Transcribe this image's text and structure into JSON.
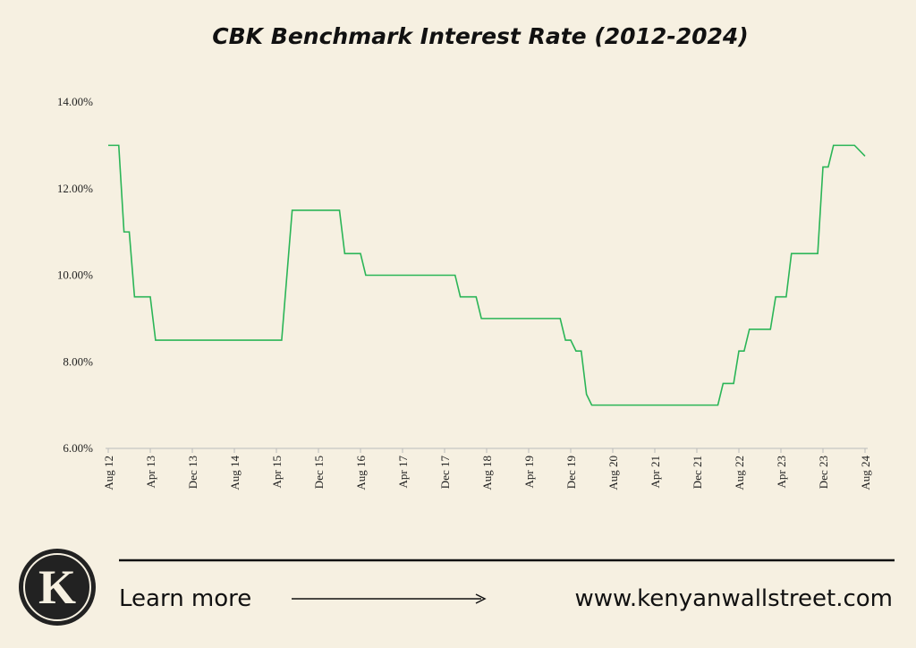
{
  "chart_data": {
    "type": "line",
    "title": "CBK Benchmark Interest Rate (2012-2024)",
    "x": [
      "2012-08",
      "2012-10",
      "2012-11",
      "2012-12",
      "2013-01",
      "2013-04",
      "2013-05",
      "2015-05",
      "2015-07",
      "2016-04",
      "2016-05",
      "2016-08",
      "2016-09",
      "2018-02",
      "2018-03",
      "2018-06",
      "2018-07",
      "2019-10",
      "2019-11",
      "2019-12",
      "2020-01",
      "2020-02",
      "2020-03",
      "2020-04",
      "2022-04",
      "2022-05",
      "2022-07",
      "2022-08",
      "2022-09",
      "2022-10",
      "2023-02",
      "2023-03",
      "2023-05",
      "2023-06",
      "2023-11",
      "2023-12",
      "2024-01",
      "2024-02",
      "2024-06",
      "2024-08"
    ],
    "values": [
      13,
      13,
      11,
      11,
      9.5,
      9.5,
      8.5,
      8.5,
      11.5,
      11.5,
      10.5,
      10.5,
      10,
      10,
      9.5,
      9.5,
      9,
      9,
      8.5,
      8.5,
      8.25,
      8.25,
      7.25,
      7,
      7,
      7.5,
      7.5,
      8.25,
      8.25,
      8.75,
      8.75,
      9.5,
      9.5,
      10.5,
      10.5,
      12.5,
      12.5,
      13,
      13,
      12.75
    ],
    "color": "#2bb557",
    "xlim": [
      "2012-08",
      "2024-08"
    ],
    "xticks": [
      {
        "value": "2012-08",
        "label": "Aug 12"
      },
      {
        "value": "2013-04",
        "label": "Apr 13"
      },
      {
        "value": "2013-12",
        "label": "Dec 13"
      },
      {
        "value": "2014-08",
        "label": "Aug 14"
      },
      {
        "value": "2015-04",
        "label": "Apr 15"
      },
      {
        "value": "2015-12",
        "label": "Dec 15"
      },
      {
        "value": "2016-08",
        "label": "Aug 16"
      },
      {
        "value": "2017-04",
        "label": "Apr 17"
      },
      {
        "value": "2017-12",
        "label": "Dec 17"
      },
      {
        "value": "2018-08",
        "label": "Aug 18"
      },
      {
        "value": "2019-04",
        "label": "Apr 19"
      },
      {
        "value": "2019-12",
        "label": "Dec 19"
      },
      {
        "value": "2020-08",
        "label": "Aug 20"
      },
      {
        "value": "2021-04",
        "label": "Apr 21"
      },
      {
        "value": "2021-12",
        "label": "Dec 21"
      },
      {
        "value": "2022-08",
        "label": "Aug 22"
      },
      {
        "value": "2023-04",
        "label": "Apr 23"
      },
      {
        "value": "2023-12",
        "label": "Dec 23"
      },
      {
        "value": "2024-08",
        "label": "Aug 24"
      }
    ],
    "ylim": [
      6,
      14
    ],
    "yticks": [
      {
        "value": 6,
        "label": "6.00%"
      },
      {
        "value": 8,
        "label": "8.00%"
      },
      {
        "value": 10,
        "label": "10.00%"
      },
      {
        "value": 12,
        "label": "12.00%"
      },
      {
        "value": 14,
        "label": "14.00%"
      }
    ]
  },
  "footer": {
    "logo": "K",
    "link_text": "Learn more",
    "url": "www.kenyanwallstreet.com"
  }
}
